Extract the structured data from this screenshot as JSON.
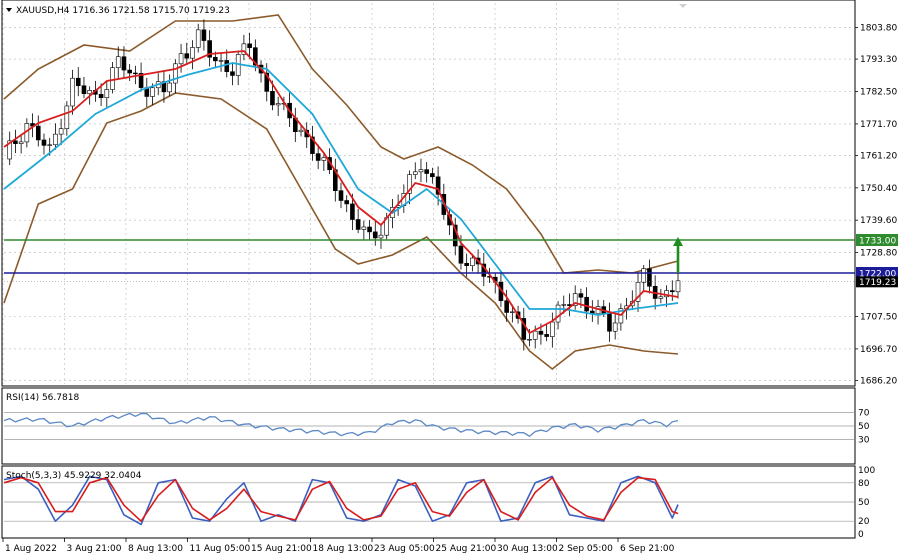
{
  "header": {
    "symbol_title": "XAUUSD,H4  1716.36 1721.58 1715.70 1719.23"
  },
  "colors": {
    "grid": "#b8b8b8",
    "candle": "#000000",
    "bollinger": "#8b5a2b",
    "ma_fast": "#d81d1d",
    "ma_slow": "#1fa8d8",
    "resistance": "#2e8b2e",
    "pivot": "#1c1c9a",
    "arrow": "#1e8c1e",
    "rsi": "#5b88c5",
    "stoch_main": "#3b5fc0",
    "stoch_signal": "#d81d1d"
  },
  "chart_data": [
    {
      "type": "candlestick",
      "title": "XAUUSD,H4  1716.36 1721.58 1715.70 1719.23",
      "ylim": [
        1685,
        1812
      ],
      "yticks": [
        1803.8,
        1793.3,
        1782.5,
        1771.7,
        1761.2,
        1750.4,
        1739.6,
        1728.8,
        1707.5,
        1696.7,
        1686.2
      ],
      "xticks": [
        "1 Aug 2022",
        "3 Aug 21:00",
        "8 Aug 13:00",
        "11 Aug 05:00",
        "15 Aug 21:00",
        "18 Aug 13:00",
        "23 Aug 05:00",
        "25 Aug 21:00",
        "30 Aug 13:00",
        "2 Sep 05:00",
        "6 Sep 21:00"
      ],
      "price_lines": [
        {
          "label": "1733.00",
          "value": 1733.0
        },
        {
          "label": "1722.00",
          "value": 1722.0
        }
      ],
      "current_price": {
        "label": "1719.23",
        "value": 1719.23
      },
      "signal": "up-arrow",
      "close_path": [
        [
          0,
          1760
        ],
        [
          4,
          1772
        ],
        [
          8,
          1762
        ],
        [
          12,
          1785
        ],
        [
          16,
          1780
        ],
        [
          20,
          1792
        ],
        [
          24,
          1785
        ],
        [
          28,
          1782
        ],
        [
          31,
          1795
        ],
        [
          34,
          1800
        ],
        [
          37,
          1793
        ],
        [
          40,
          1790
        ],
        [
          43,
          1798
        ],
        [
          46,
          1783
        ],
        [
          49,
          1775
        ],
        [
          52,
          1770
        ],
        [
          55,
          1760
        ],
        [
          58,
          1752
        ],
        [
          61,
          1740
        ],
        [
          64,
          1733
        ],
        [
          67,
          1740
        ],
        [
          70,
          1748
        ],
        [
          73,
          1760
        ],
        [
          76,
          1748
        ],
        [
          79,
          1730
        ],
        [
          82,
          1725
        ],
        [
          85,
          1720
        ],
        [
          88,
          1712
        ],
        [
          91,
          1700
        ],
        [
          94,
          1702
        ],
        [
          97,
          1708
        ],
        [
          100,
          1715
        ],
        [
          103,
          1710
        ],
        [
          106,
          1704
        ],
        [
          109,
          1712
        ],
        [
          112,
          1720
        ],
        [
          115,
          1714
        ],
        [
          118,
          1719.23
        ]
      ],
      "ma_fast_path": [
        [
          0,
          1764
        ],
        [
          6,
          1772
        ],
        [
          12,
          1776
        ],
        [
          18,
          1786
        ],
        [
          24,
          1788
        ],
        [
          30,
          1790
        ],
        [
          36,
          1795
        ],
        [
          42,
          1796
        ],
        [
          46,
          1788
        ],
        [
          50,
          1776
        ],
        [
          56,
          1762
        ],
        [
          62,
          1744
        ],
        [
          66,
          1738
        ],
        [
          72,
          1752
        ],
        [
          76,
          1750
        ],
        [
          80,
          1732
        ],
        [
          84,
          1724
        ],
        [
          88,
          1714
        ],
        [
          92,
          1702
        ],
        [
          96,
          1706
        ],
        [
          100,
          1712
        ],
        [
          104,
          1710
        ],
        [
          108,
          1708
        ],
        [
          112,
          1716
        ],
        [
          118,
          1714
        ]
      ],
      "ma_slow_path": [
        [
          0,
          1750
        ],
        [
          8,
          1762
        ],
        [
          16,
          1775
        ],
        [
          24,
          1783
        ],
        [
          32,
          1788
        ],
        [
          40,
          1792
        ],
        [
          46,
          1790
        ],
        [
          54,
          1775
        ],
        [
          62,
          1750
        ],
        [
          68,
          1742
        ],
        [
          74,
          1750
        ],
        [
          80,
          1740
        ],
        [
          86,
          1725
        ],
        [
          92,
          1710
        ],
        [
          98,
          1710
        ],
        [
          104,
          1708
        ],
        [
          110,
          1710
        ],
        [
          118,
          1712
        ]
      ],
      "bollinger_upper_path": [
        [
          0,
          1780
        ],
        [
          6,
          1790
        ],
        [
          14,
          1798
        ],
        [
          22,
          1796
        ],
        [
          30,
          1806
        ],
        [
          40,
          1806
        ],
        [
          48,
          1808
        ],
        [
          54,
          1790
        ],
        [
          60,
          1778
        ],
        [
          66,
          1764
        ],
        [
          70,
          1760
        ],
        [
          76,
          1764
        ],
        [
          82,
          1758
        ],
        [
          88,
          1750
        ],
        [
          94,
          1735
        ],
        [
          98,
          1722
        ],
        [
          104,
          1723
        ],
        [
          110,
          1722
        ],
        [
          118,
          1726
        ]
      ],
      "bollinger_lower_path": [
        [
          0,
          1712
        ],
        [
          6,
          1745
        ],
        [
          12,
          1750
        ],
        [
          18,
          1772
        ],
        [
          24,
          1776
        ],
        [
          30,
          1782
        ],
        [
          38,
          1780
        ],
        [
          46,
          1770
        ],
        [
          52,
          1750
        ],
        [
          58,
          1730
        ],
        [
          62,
          1725
        ],
        [
          68,
          1728
        ],
        [
          74,
          1734
        ],
        [
          80,
          1722
        ],
        [
          86,
          1712
        ],
        [
          92,
          1696
        ],
        [
          96,
          1690
        ],
        [
          100,
          1696
        ],
        [
          106,
          1698
        ],
        [
          112,
          1696
        ],
        [
          118,
          1695
        ]
      ]
    },
    {
      "type": "line",
      "title": "RSI(14) 56.7818",
      "ylim": [
        0,
        100
      ],
      "yticks": [
        70,
        50,
        30
      ],
      "levels": [
        70,
        50,
        30
      ],
      "x_path": [
        0,
        6,
        12,
        18,
        24,
        30,
        36,
        42,
        48,
        54,
        60,
        64,
        68,
        72,
        76,
        80,
        84,
        88,
        92,
        96,
        100,
        104,
        108,
        112,
        116,
        118
      ],
      "values": [
        58,
        60,
        50,
        62,
        68,
        54,
        63,
        52,
        46,
        42,
        38,
        40,
        55,
        58,
        48,
        44,
        41,
        40,
        38,
        47,
        52,
        44,
        50,
        58,
        52,
        56.78
      ]
    },
    {
      "type": "line",
      "title": "Stoch(5,3,3) 45.9229 32.0404",
      "ylim": [
        0,
        100
      ],
      "yticks": [
        100,
        80,
        50,
        20,
        0
      ],
      "levels": [
        80,
        50,
        20
      ],
      "series": [
        {
          "x": [
            0,
            3,
            6,
            9,
            12,
            15,
            18,
            21,
            24,
            27,
            30,
            33,
            36,
            39,
            42,
            45,
            48,
            51,
            54,
            57,
            60,
            63,
            66,
            69,
            72,
            75,
            78,
            81,
            84,
            87,
            90,
            93,
            96,
            99,
            102,
            105,
            108,
            111,
            114,
            117,
            118
          ],
          "values": [
            85,
            90,
            70,
            20,
            45,
            90,
            85,
            30,
            15,
            80,
            85,
            25,
            20,
            55,
            80,
            20,
            30,
            20,
            85,
            80,
            25,
            20,
            30,
            85,
            75,
            20,
            30,
            80,
            85,
            20,
            25,
            80,
            90,
            30,
            25,
            20,
            80,
            90,
            80,
            25,
            45.92
          ]
        },
        {
          "x": [
            0,
            3,
            6,
            9,
            12,
            15,
            18,
            21,
            24,
            27,
            30,
            33,
            36,
            39,
            42,
            45,
            48,
            51,
            54,
            57,
            60,
            63,
            66,
            69,
            72,
            75,
            78,
            81,
            84,
            87,
            90,
            93,
            96,
            99,
            102,
            105,
            108,
            111,
            114,
            117,
            118
          ],
          "values": [
            80,
            88,
            80,
            35,
            35,
            80,
            88,
            45,
            20,
            60,
            85,
            40,
            22,
            40,
            70,
            35,
            28,
            22,
            70,
            82,
            40,
            22,
            28,
            70,
            80,
            35,
            28,
            65,
            85,
            35,
            22,
            65,
            88,
            45,
            28,
            22,
            65,
            88,
            85,
            35,
            32.04
          ]
        }
      ]
    }
  ]
}
